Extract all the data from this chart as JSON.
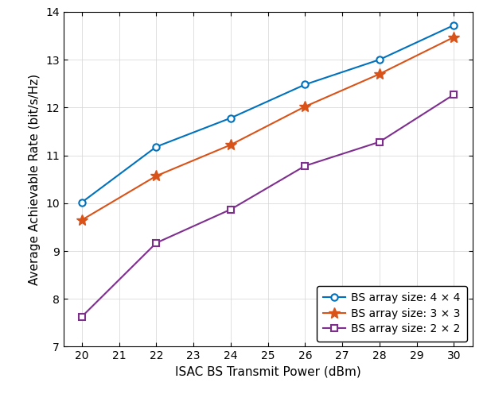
{
  "x": [
    20,
    22,
    24,
    26,
    28,
    30
  ],
  "y_4x4": [
    10.02,
    11.18,
    11.78,
    12.48,
    13.0,
    13.72
  ],
  "y_3x3": [
    9.65,
    10.57,
    11.22,
    12.02,
    12.7,
    13.47
  ],
  "y_2x2": [
    7.63,
    9.17,
    9.87,
    10.78,
    11.28,
    12.27
  ],
  "color_4x4": "#0072BD",
  "color_3x3": "#D95319",
  "color_2x2": "#7E2F8E",
  "xlabel": "ISAC BS Transmit Power (dBm)",
  "ylabel": "Average Achievable Rate (bit/s/Hz)",
  "xlim": [
    19.5,
    30.5
  ],
  "ylim": [
    7,
    14
  ],
  "xticks": [
    20,
    21,
    22,
    23,
    24,
    25,
    26,
    27,
    28,
    29,
    30
  ],
  "yticks": [
    7,
    8,
    9,
    10,
    11,
    12,
    13,
    14
  ],
  "legend_labels": [
    "BS array size: 4 × 4",
    "BS array size: 3 × 3",
    "BS array size: 2 × 2"
  ],
  "legend_loc": "lower right",
  "figsize": [
    6.12,
    4.96
  ],
  "dpi": 100
}
